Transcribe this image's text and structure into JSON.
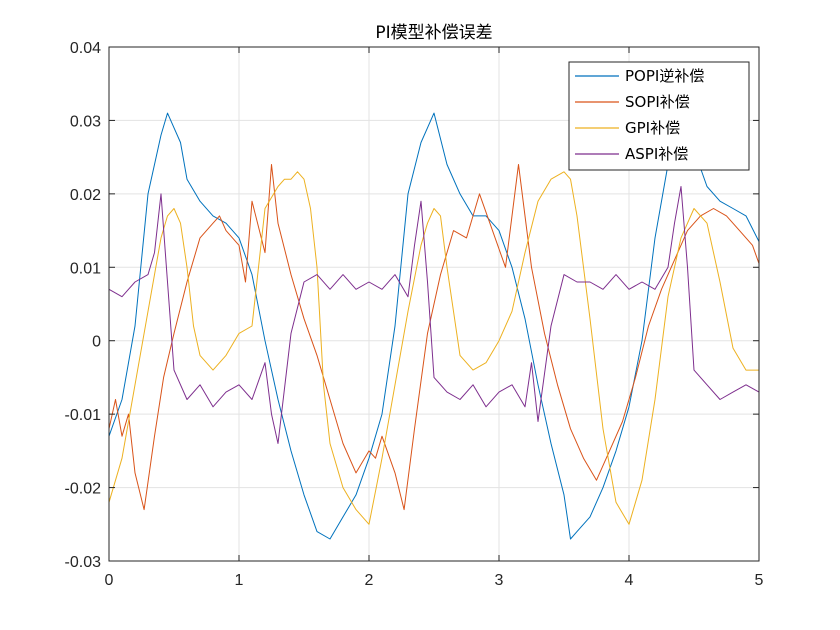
{
  "chart_data": {
    "type": "line",
    "title": "PI模型补偿误差",
    "xlabel": "",
    "ylabel": "",
    "xlim": [
      0,
      5
    ],
    "ylim": [
      -0.03,
      0.04
    ],
    "xticks": [
      "0",
      "1",
      "2",
      "3",
      "4",
      "5"
    ],
    "yticks": [
      "-0.03",
      "-0.02",
      "-0.01",
      "0",
      "0.01",
      "0.02",
      "0.03",
      "0.04"
    ],
    "grid": true,
    "legend_position": "top-right",
    "series": [
      {
        "name": "POPI逆补偿",
        "color": "#0072BD",
        "x": [
          0,
          0.1,
          0.2,
          0.3,
          0.4,
          0.45,
          0.55,
          0.6,
          0.7,
          0.8,
          0.9,
          1.0,
          1.1,
          1.2,
          1.3,
          1.4,
          1.5,
          1.6,
          1.7,
          1.8,
          1.9,
          2.0,
          2.1,
          2.2,
          2.3,
          2.4,
          2.5,
          2.6,
          2.7,
          2.8,
          2.9,
          3.0,
          3.1,
          3.2,
          3.3,
          3.4,
          3.5,
          3.55,
          3.6,
          3.7,
          3.8,
          3.9,
          4.0,
          4.1,
          4.2,
          4.3,
          4.4,
          4.5,
          4.6,
          4.7,
          4.8,
          4.9,
          5.0
        ],
        "y": [
          -0.013,
          -0.008,
          0.002,
          0.02,
          0.028,
          0.031,
          0.027,
          0.022,
          0.019,
          0.017,
          0.016,
          0.014,
          0.009,
          0.0,
          -0.008,
          -0.015,
          -0.021,
          -0.026,
          -0.027,
          -0.024,
          -0.021,
          -0.016,
          -0.01,
          0.002,
          0.02,
          0.027,
          0.031,
          0.024,
          0.02,
          0.017,
          0.017,
          0.015,
          0.01,
          0.003,
          -0.006,
          -0.014,
          -0.021,
          -0.027,
          -0.026,
          -0.024,
          -0.02,
          -0.015,
          -0.009,
          0.0,
          0.014,
          0.024,
          0.027,
          0.026,
          0.021,
          0.019,
          0.018,
          0.017,
          0.0135
        ]
      },
      {
        "name": "SOPI补偿",
        "color": "#D95319",
        "x": [
          0,
          0.05,
          0.1,
          0.15,
          0.2,
          0.27,
          0.35,
          0.42,
          0.5,
          0.6,
          0.7,
          0.8,
          0.85,
          0.9,
          1.0,
          1.05,
          1.1,
          1.2,
          1.25,
          1.3,
          1.4,
          1.5,
          1.6,
          1.7,
          1.8,
          1.9,
          2.0,
          2.05,
          2.1,
          2.2,
          2.27,
          2.35,
          2.45,
          2.55,
          2.65,
          2.75,
          2.85,
          2.95,
          3.05,
          3.15,
          3.25,
          3.35,
          3.45,
          3.55,
          3.65,
          3.75,
          3.85,
          3.95,
          4.05,
          4.15,
          4.25,
          4.35,
          4.45,
          4.55,
          4.65,
          4.75,
          4.85,
          4.95,
          5.0
        ],
        "y": [
          -0.012,
          -0.008,
          -0.013,
          -0.01,
          -0.018,
          -0.023,
          -0.013,
          -0.005,
          0.001,
          0.008,
          0.014,
          0.016,
          0.017,
          0.015,
          0.013,
          0.008,
          0.019,
          0.012,
          0.024,
          0.016,
          0.009,
          0.003,
          -0.002,
          -0.008,
          -0.014,
          -0.018,
          -0.015,
          -0.016,
          -0.013,
          -0.018,
          -0.023,
          -0.012,
          0.001,
          0.009,
          0.015,
          0.014,
          0.02,
          0.015,
          0.01,
          0.024,
          0.01,
          0.001,
          -0.006,
          -0.012,
          -0.016,
          -0.019,
          -0.015,
          -0.011,
          -0.005,
          0.002,
          0.007,
          0.011,
          0.015,
          0.017,
          0.018,
          0.017,
          0.015,
          0.013,
          0.0105
        ]
      },
      {
        "name": "GPI补偿",
        "color": "#EDB120",
        "x": [
          0,
          0.1,
          0.2,
          0.3,
          0.4,
          0.45,
          0.5,
          0.55,
          0.6,
          0.65,
          0.7,
          0.8,
          0.9,
          1.0,
          1.1,
          1.15,
          1.2,
          1.3,
          1.35,
          1.4,
          1.45,
          1.5,
          1.55,
          1.6,
          1.65,
          1.7,
          1.8,
          1.9,
          2.0,
          2.1,
          2.2,
          2.3,
          2.4,
          2.45,
          2.5,
          2.55,
          2.6,
          2.7,
          2.8,
          2.9,
          3.0,
          3.1,
          3.2,
          3.3,
          3.4,
          3.5,
          3.55,
          3.6,
          3.7,
          3.8,
          3.9,
          4.0,
          4.1,
          4.2,
          4.3,
          4.4,
          4.5,
          4.6,
          4.7,
          4.8,
          4.9,
          5.0
        ],
        "y": [
          -0.022,
          -0.016,
          -0.006,
          0.004,
          0.014,
          0.017,
          0.018,
          0.016,
          0.01,
          0.002,
          -0.002,
          -0.004,
          -0.002,
          0.001,
          0.002,
          0.01,
          0.018,
          0.021,
          0.022,
          0.022,
          0.023,
          0.022,
          0.018,
          0.01,
          -0.006,
          -0.014,
          -0.02,
          -0.023,
          -0.025,
          -0.016,
          -0.006,
          0.004,
          0.013,
          0.016,
          0.018,
          0.017,
          0.01,
          -0.002,
          -0.004,
          -0.003,
          0.0,
          0.004,
          0.012,
          0.019,
          0.022,
          0.023,
          0.022,
          0.017,
          0.003,
          -0.012,
          -0.022,
          -0.025,
          -0.019,
          -0.008,
          0.006,
          0.014,
          0.018,
          0.016,
          0.008,
          -0.001,
          -0.004,
          -0.004
        ]
      },
      {
        "name": "ASPI补偿",
        "color": "#7E2F8E",
        "x": [
          0,
          0.1,
          0.2,
          0.3,
          0.35,
          0.4,
          0.45,
          0.5,
          0.6,
          0.7,
          0.8,
          0.9,
          1.0,
          1.1,
          1.2,
          1.25,
          1.3,
          1.4,
          1.5,
          1.6,
          1.7,
          1.8,
          1.9,
          2.0,
          2.1,
          2.2,
          2.3,
          2.35,
          2.4,
          2.45,
          2.5,
          2.6,
          2.7,
          2.8,
          2.9,
          3.0,
          3.1,
          3.2,
          3.25,
          3.3,
          3.4,
          3.5,
          3.6,
          3.7,
          3.8,
          3.9,
          4.0,
          4.1,
          4.2,
          4.3,
          4.35,
          4.4,
          4.45,
          4.5,
          4.6,
          4.7,
          4.8,
          4.9,
          5.0
        ],
        "y": [
          0.007,
          0.006,
          0.008,
          0.009,
          0.012,
          0.02,
          0.008,
          -0.004,
          -0.008,
          -0.006,
          -0.009,
          -0.007,
          -0.006,
          -0.008,
          -0.003,
          -0.01,
          -0.014,
          0.001,
          0.008,
          0.009,
          0.007,
          0.009,
          0.007,
          0.008,
          0.007,
          0.009,
          0.006,
          0.013,
          0.019,
          0.008,
          -0.005,
          -0.007,
          -0.008,
          -0.006,
          -0.009,
          -0.007,
          -0.006,
          -0.009,
          -0.003,
          -0.011,
          0.002,
          0.009,
          0.008,
          0.008,
          0.007,
          0.009,
          0.007,
          0.008,
          0.007,
          0.01,
          0.016,
          0.021,
          0.01,
          -0.004,
          -0.006,
          -0.008,
          -0.007,
          -0.006,
          -0.007
        ]
      }
    ]
  }
}
